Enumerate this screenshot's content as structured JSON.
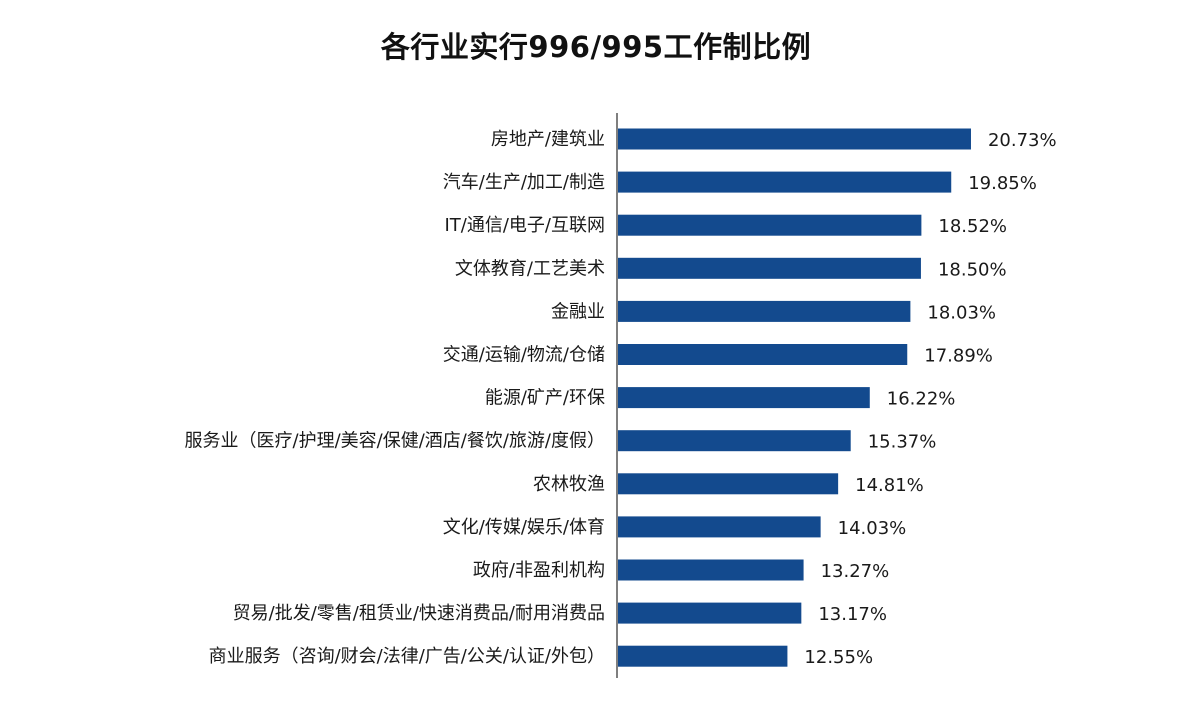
{
  "chart_data": {
    "type": "bar",
    "orientation": "horizontal",
    "title": "各行业实行996/995工作制比例",
    "categories": [
      "房地产/建筑业",
      "汽车/生产/加工/制造",
      "IT/通信/电子/互联网",
      "文体教育/工艺美术",
      "金融业",
      "交通/运输/物流/仓储",
      "能源/矿产/环保",
      "服务业（医疗/护理/美容/保健/酒店/餐饮/旅游/度假）",
      "农林牧渔",
      "文化/传媒/娱乐/体育",
      "政府/非盈利机构",
      "贸易/批发/零售/租赁业/快速消费品/耐用消费品",
      "商业服务（咨询/财会/法律/广告/公关/认证/外包）"
    ],
    "values": [
      20.73,
      19.85,
      18.52,
      18.5,
      18.03,
      17.89,
      16.22,
      15.37,
      14.81,
      14.03,
      13.27,
      13.17,
      12.55
    ],
    "data_labels": [
      "20.73%",
      "19.85%",
      "18.52%",
      "18.50%",
      "18.03%",
      "17.89%",
      "16.22%",
      "15.37%",
      "14.81%",
      "14.03%",
      "13.27%",
      "13.17%",
      "12.55%"
    ],
    "unit": "%",
    "xlim": [
      5,
      21
    ],
    "grid": false,
    "bar_color": "#134a8e"
  }
}
